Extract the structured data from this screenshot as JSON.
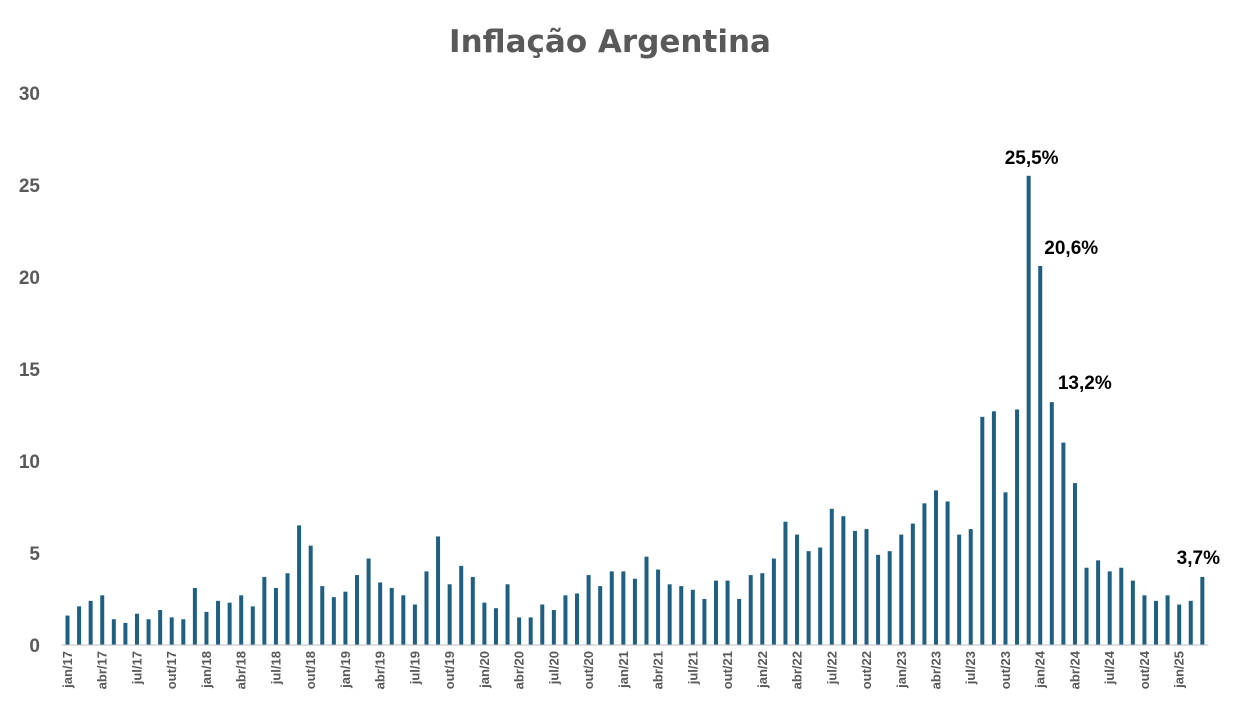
{
  "chart_data": {
    "type": "bar",
    "title": "Inflação Argentina",
    "xlabel": "",
    "ylabel": "",
    "ylim": [
      0,
      30
    ],
    "y_ticks": [
      0,
      5,
      10,
      15,
      20,
      25,
      30
    ],
    "grid": false,
    "legend": "none",
    "bar_color": "#1f5f82",
    "categories": [
      "jan/17",
      "fev/17",
      "mar/17",
      "abr/17",
      "mai/17",
      "jun/17",
      "jul/17",
      "ago/17",
      "set/17",
      "out/17",
      "nov/17",
      "dez/17",
      "jan/18",
      "fev/18",
      "mar/18",
      "abr/18",
      "mai/18",
      "jun/18",
      "jul/18",
      "ago/18",
      "set/18",
      "out/18",
      "nov/18",
      "dez/18",
      "jan/19",
      "fev/19",
      "mar/19",
      "abr/19",
      "mai/19",
      "jun/19",
      "jul/19",
      "ago/19",
      "set/19",
      "out/19",
      "nov/19",
      "dez/19",
      "jan/20",
      "fev/20",
      "mar/20",
      "abr/20",
      "mai/20",
      "jun/20",
      "jul/20",
      "ago/20",
      "set/20",
      "out/20",
      "nov/20",
      "dez/20",
      "jan/21",
      "fev/21",
      "mar/21",
      "abr/21",
      "mai/21",
      "jun/21",
      "jul/21",
      "ago/21",
      "set/21",
      "out/21",
      "nov/21",
      "dez/21",
      "jan/22",
      "fev/22",
      "mar/22",
      "abr/22",
      "mai/22",
      "jun/22",
      "jul/22",
      "ago/22",
      "set/22",
      "out/22",
      "nov/22",
      "dez/22",
      "jan/23",
      "fev/23",
      "mar/23",
      "abr/23",
      "mai/23",
      "jun/23",
      "jul/23",
      "ago/23",
      "set/23",
      "out/23",
      "nov/23",
      "dez/23",
      "jan/24",
      "fev/24",
      "mar/24",
      "abr/24",
      "mai/24",
      "jun/24",
      "jul/24",
      "ago/24",
      "set/24",
      "out/24",
      "nov/24",
      "dez/24",
      "jan/25",
      "fev/25",
      "mar/25"
    ],
    "tick_labels": [
      "jan/17",
      "abr/17",
      "jul/17",
      "out/17",
      "jan/18",
      "abr/18",
      "jul/18",
      "out/18",
      "jan/19",
      "abr/19",
      "jul/19",
      "out/19",
      "jan/20",
      "abr/20",
      "jul/20",
      "out/20",
      "jan/21",
      "abr/21",
      "jul/21",
      "out/21",
      "jan/22",
      "abr/22",
      "jul/22",
      "out/22",
      "jan/23",
      "abr/23",
      "jul/23",
      "out/23",
      "jan/24",
      "abr/24",
      "jul/24",
      "out/24",
      "jan/25"
    ],
    "series": [
      {
        "values": [
          1.6,
          2.1,
          2.4,
          2.7,
          1.4,
          1.2,
          1.7,
          1.4,
          1.9,
          1.5,
          1.4,
          3.1,
          1.8,
          2.4,
          2.3,
          2.7,
          2.1,
          3.7,
          3.1,
          3.9,
          6.5,
          5.4,
          3.2,
          2.6,
          2.9,
          3.8,
          4.7,
          3.4,
          3.1,
          2.7,
          2.2,
          4.0,
          5.9,
          3.3,
          4.3,
          3.7,
          2.3,
          2.0,
          3.3,
          1.5,
          1.5,
          2.2,
          1.9,
          2.7,
          2.8,
          3.8,
          3.2,
          4.0,
          4.0,
          3.6,
          4.8,
          4.1,
          3.3,
          3.2,
          3.0,
          2.5,
          3.5,
          3.5,
          2.5,
          3.8,
          3.9,
          4.7,
          6.7,
          6.0,
          5.1,
          5.3,
          7.4,
          7.0,
          6.2,
          6.3,
          4.9,
          5.1,
          6.0,
          6.6,
          7.7,
          8.4,
          7.8,
          6.0,
          6.3,
          12.4,
          12.7,
          8.3,
          12.8,
          25.5,
          20.6,
          13.2,
          11.0,
          8.8,
          4.2,
          4.6,
          4.0,
          4.2,
          3.5,
          2.7,
          2.4,
          2.7,
          2.2,
          2.4,
          3.7
        ]
      }
    ],
    "annotations": [
      {
        "category": "dez/23",
        "value": 25.5,
        "text": "25,5%"
      },
      {
        "category": "jan/24",
        "value": 20.6,
        "text": "20,6%"
      },
      {
        "category": "fev/24",
        "value": 13.2,
        "text": "13,2%"
      },
      {
        "category": "mar/25",
        "value": 3.7,
        "text": "3,7%"
      }
    ]
  }
}
